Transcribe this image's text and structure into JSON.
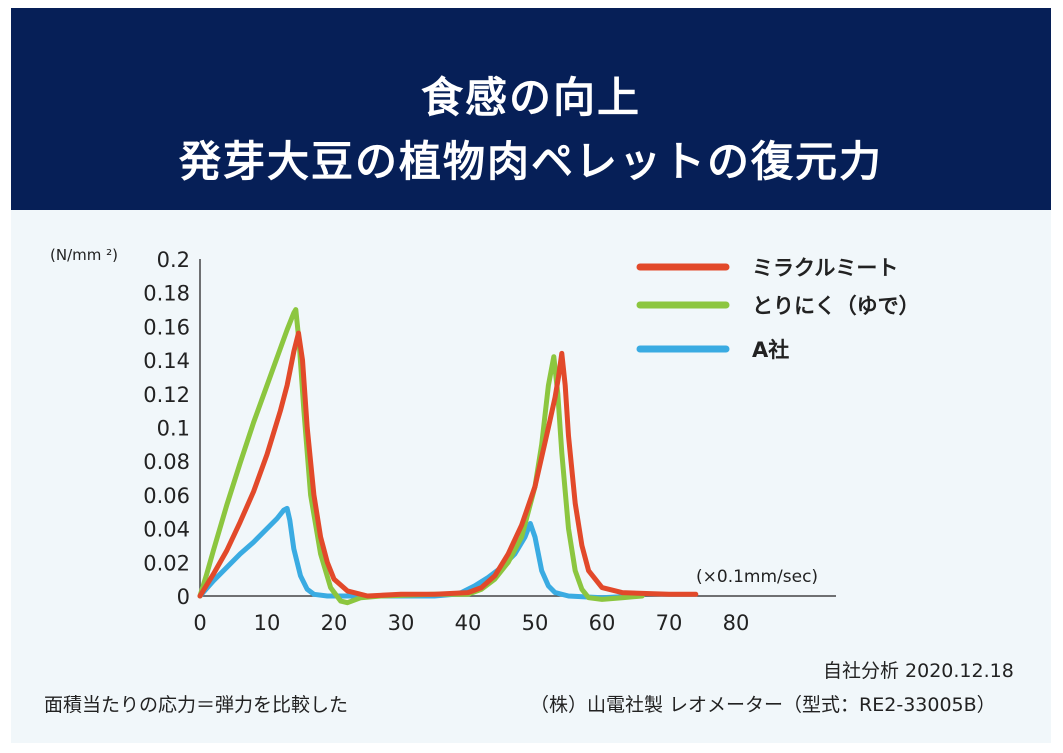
{
  "header": {
    "title_line1": "食感の向上",
    "title_line2": "発芽大豆の植物肉ペレットの復元力"
  },
  "chart_data": {
    "type": "line",
    "ylabel": "(N/mm ²)",
    "xlabel": "(×0.1mm/sec)",
    "xlim": [
      0,
      80
    ],
    "ylim": [
      0,
      0.2
    ],
    "xticks": [
      "0",
      "10",
      "20",
      "30",
      "40",
      "50",
      "60",
      "70",
      "80"
    ],
    "yticks": [
      "0",
      "0.02",
      "0.04",
      "0.06",
      "0.08",
      "0.1",
      "0.12",
      "0.14",
      "0.16",
      "0.18",
      "0.2"
    ],
    "legend_position": "top-right",
    "grid": false,
    "series": [
      {
        "name": "ミラクルミート",
        "color": "#e2492a",
        "points": [
          [
            0,
            0
          ],
          [
            2,
            0.013
          ],
          [
            4,
            0.027
          ],
          [
            6,
            0.044
          ],
          [
            8,
            0.062
          ],
          [
            10,
            0.084
          ],
          [
            12,
            0.11
          ],
          [
            13,
            0.125
          ],
          [
            14,
            0.145
          ],
          [
            14.7,
            0.156
          ],
          [
            15.3,
            0.14
          ],
          [
            16,
            0.1
          ],
          [
            17,
            0.06
          ],
          [
            18,
            0.035
          ],
          [
            19,
            0.02
          ],
          [
            20,
            0.01
          ],
          [
            22,
            0.003
          ],
          [
            25,
            0.0
          ],
          [
            30,
            0.001
          ],
          [
            35,
            0.001
          ],
          [
            40,
            0.002
          ],
          [
            42,
            0.005
          ],
          [
            44,
            0.012
          ],
          [
            46,
            0.025
          ],
          [
            48,
            0.042
          ],
          [
            50,
            0.065
          ],
          [
            52,
            0.1
          ],
          [
            53,
            0.118
          ],
          [
            53.5,
            0.13
          ],
          [
            54,
            0.144
          ],
          [
            54.5,
            0.125
          ],
          [
            55,
            0.095
          ],
          [
            56,
            0.055
          ],
          [
            57,
            0.03
          ],
          [
            58,
            0.015
          ],
          [
            60,
            0.005
          ],
          [
            63,
            0.002
          ],
          [
            70,
            0.001
          ],
          [
            74,
            0.001
          ]
        ]
      },
      {
        "name": "とりにく（ゆで）",
        "color": "#8cc63f",
        "points": [
          [
            0,
            0
          ],
          [
            1,
            0.013
          ],
          [
            2,
            0.027
          ],
          [
            4,
            0.054
          ],
          [
            6,
            0.079
          ],
          [
            8,
            0.103
          ],
          [
            10,
            0.125
          ],
          [
            12,
            0.147
          ],
          [
            13,
            0.158
          ],
          [
            14,
            0.168
          ],
          [
            14.3,
            0.17
          ],
          [
            14.8,
            0.15
          ],
          [
            15.5,
            0.11
          ],
          [
            16.5,
            0.06
          ],
          [
            18,
            0.025
          ],
          [
            19.5,
            0.005
          ],
          [
            21,
            -0.003
          ],
          [
            22,
            -0.004
          ],
          [
            24,
            -0.001
          ],
          [
            27,
            0.0
          ],
          [
            35,
            0.001
          ],
          [
            40,
            0.001
          ],
          [
            42,
            0.004
          ],
          [
            44,
            0.01
          ],
          [
            46,
            0.02
          ],
          [
            48,
            0.035
          ],
          [
            50,
            0.065
          ],
          [
            51,
            0.09
          ],
          [
            52,
            0.125
          ],
          [
            52.8,
            0.142
          ],
          [
            53.4,
            0.12
          ],
          [
            54,
            0.085
          ],
          [
            55,
            0.04
          ],
          [
            56,
            0.015
          ],
          [
            57,
            0.004
          ],
          [
            58,
            -0.001
          ],
          [
            60,
            -0.002
          ],
          [
            63,
            -0.001
          ],
          [
            66,
            0.0
          ]
        ]
      },
      {
        "name": "A社",
        "color": "#3aabe2",
        "points": [
          [
            0,
            0
          ],
          [
            2,
            0.009
          ],
          [
            4,
            0.017
          ],
          [
            6,
            0.025
          ],
          [
            8,
            0.032
          ],
          [
            10,
            0.04
          ],
          [
            11.5,
            0.046
          ],
          [
            12.5,
            0.051
          ],
          [
            13,
            0.052
          ],
          [
            13.4,
            0.045
          ],
          [
            14,
            0.028
          ],
          [
            15,
            0.012
          ],
          [
            16,
            0.004
          ],
          [
            17,
            0.001
          ],
          [
            19,
            0.0
          ],
          [
            25,
            0.0
          ],
          [
            35,
            0.0
          ],
          [
            38,
            0.001
          ],
          [
            39,
            0.002
          ],
          [
            41,
            0.006
          ],
          [
            43,
            0.011
          ],
          [
            45,
            0.017
          ],
          [
            47,
            0.025
          ],
          [
            48.5,
            0.035
          ],
          [
            49.3,
            0.043
          ],
          [
            50,
            0.035
          ],
          [
            51,
            0.015
          ],
          [
            52,
            0.006
          ],
          [
            53,
            0.002
          ],
          [
            55,
            0.0
          ],
          [
            60,
            -0.001
          ],
          [
            65,
            0.0
          ]
        ]
      }
    ]
  },
  "footer": {
    "source_date": "自社分析 2020.12.18",
    "note": "面積当たりの応力＝弾力を比較した",
    "device": "（株）山電社製 レオメーター（型式：RE2-33005B）"
  }
}
